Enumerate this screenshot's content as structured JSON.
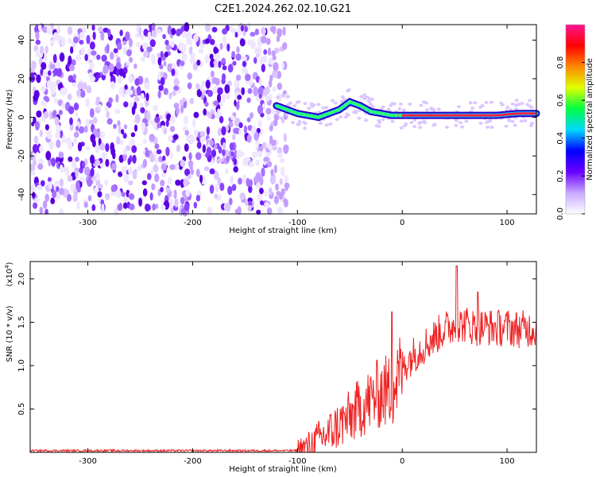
{
  "title": "C2E1.2024.262.02.10.G21",
  "chart_data": [
    {
      "type": "heatmap",
      "xlabel": "Height of straight line (km)",
      "ylabel": "Frequency (Hz)",
      "xlim": [
        -355,
        128
      ],
      "ylim": [
        -50,
        48
      ],
      "xticks": [
        -300,
        -200,
        -100,
        0,
        100
      ],
      "yticks": [
        -40,
        -20,
        0,
        20,
        40
      ],
      "colorbar": {
        "label": "Normalized spectral amplitude",
        "range": [
          0,
          1
        ],
        "ticks": [
          0.0,
          0.2,
          0.4,
          0.6,
          0.8
        ],
        "tick_labels": [
          "0.0",
          "0.2",
          "0.4",
          "0.6",
          "0.8"
        ],
        "colors": [
          "#ffffff",
          "#c8a8ff",
          "#6a00ff",
          "#0000ff",
          "#00d8ff",
          "#00ff40",
          "#e0ff00",
          "#ff8800",
          "#ff0000",
          "#ff1493"
        ]
      },
      "noise_region": {
        "x_range": [
          -355,
          -110
        ],
        "freq_range": [
          -50,
          48
        ]
      },
      "signal_trace": {
        "x": [
          -120,
          -110,
          -100,
          -90,
          -80,
          -70,
          -60,
          -50,
          -40,
          -30,
          -20,
          -10,
          0,
          10,
          30,
          50,
          70,
          90,
          110,
          128
        ],
        "freq": [
          6,
          4,
          2,
          1,
          0,
          2,
          4,
          8,
          6,
          3,
          2,
          1,
          1,
          1,
          1,
          1,
          1,
          1,
          2,
          2
        ]
      }
    },
    {
      "type": "line",
      "xlabel": "Height of straight line (km)",
      "ylabel": "SNR (10 * v/v)",
      "scale_label": "(x10",
      "scale_exp": "4",
      "xlim": [
        -355,
        128
      ],
      "ylim": [
        0,
        2.2
      ],
      "xticks": [
        -300,
        -200,
        -100,
        0,
        100
      ],
      "yticks": [
        0.5,
        1.0,
        1.5,
        2.0
      ],
      "ytick_labels": [
        "0.5",
        "1.0",
        "1.5",
        "2.0"
      ],
      "color": "#ee2222",
      "envelope": {
        "x": [
          -355,
          -100,
          -90,
          -80,
          -70,
          -60,
          -50,
          -40,
          -30,
          -20,
          -10,
          0,
          10,
          20,
          30,
          40,
          50,
          60,
          70,
          80,
          90,
          100,
          110,
          128
        ],
        "y": [
          0.02,
          0.02,
          0.06,
          0.15,
          0.22,
          0.32,
          0.4,
          0.52,
          0.6,
          0.7,
          0.7,
          0.98,
          1.12,
          1.22,
          1.32,
          1.42,
          1.46,
          1.48,
          1.44,
          1.45,
          1.43,
          1.44,
          1.42,
          1.43
        ]
      },
      "peaks": [
        {
          "x": -10,
          "y": 1.62
        },
        {
          "x": 52,
          "y": 2.15
        },
        {
          "x": 72,
          "y": 1.85
        }
      ]
    }
  ]
}
